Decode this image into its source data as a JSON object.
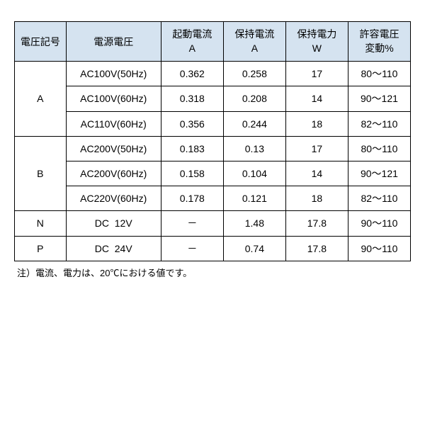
{
  "table": {
    "headers": {
      "voltage_code": "電圧記号",
      "power_voltage": "電源電圧",
      "start_current_1": "起動電流",
      "start_current_2": "A",
      "hold_current_1": "保持電流",
      "hold_current_2": "A",
      "hold_power_1": "保持電力",
      "hold_power_2": "W",
      "tolerance_1": "許容電圧",
      "tolerance_2": "変動%"
    },
    "groups": [
      {
        "code": "A",
        "rows": [
          {
            "voltage": "AC100V(50Hz)",
            "start_current": "0.362",
            "hold_current": "0.258",
            "hold_power": "17",
            "tolerance": "80～110"
          },
          {
            "voltage": "AC100V(60Hz)",
            "start_current": "0.318",
            "hold_current": "0.208",
            "hold_power": "14",
            "tolerance": "90～121"
          },
          {
            "voltage": "AC110V(60Hz)",
            "start_current": "0.356",
            "hold_current": "0.244",
            "hold_power": "18",
            "tolerance": "82～110"
          }
        ]
      },
      {
        "code": "B",
        "rows": [
          {
            "voltage": "AC200V(50Hz)",
            "start_current": "0.183",
            "hold_current": "0.13",
            "hold_power": "17",
            "tolerance": "80～110"
          },
          {
            "voltage": "AC200V(60Hz)",
            "start_current": "0.158",
            "hold_current": "0.104",
            "hold_power": "14",
            "tolerance": "90～121"
          },
          {
            "voltage": "AC220V(60Hz)",
            "start_current": "0.178",
            "hold_current": "0.121",
            "hold_power": "18",
            "tolerance": "82～110"
          }
        ]
      },
      {
        "code": "N",
        "rows": [
          {
            "voltage": "DC  12V",
            "start_current": "－",
            "hold_current": "1.48",
            "hold_power": "17.8",
            "tolerance": "90～110"
          }
        ]
      },
      {
        "code": "P",
        "rows": [
          {
            "voltage": "DC  24V",
            "start_current": "－",
            "hold_current": "0.74",
            "hold_power": "17.8",
            "tolerance": "90～110"
          }
        ]
      }
    ]
  },
  "footnote": "注）電流、電力は、20℃における値です。",
  "colors": {
    "header_bg": "#d5e3f0",
    "border": "#000000",
    "background": "#ffffff",
    "text": "#000000"
  }
}
